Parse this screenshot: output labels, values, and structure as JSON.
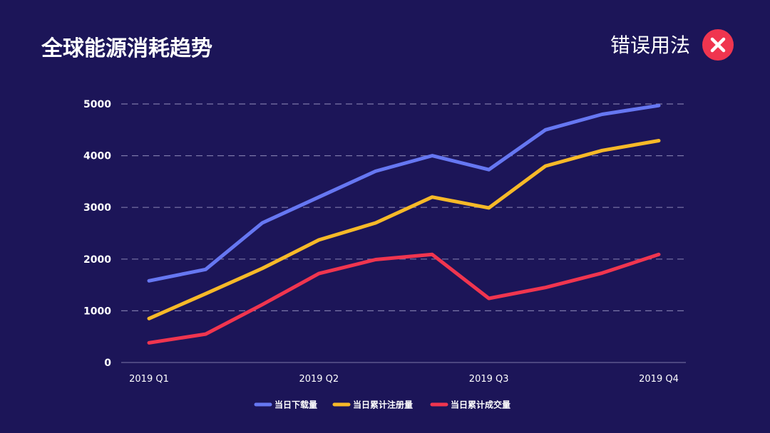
{
  "header": {
    "title": "全球能源消耗趋势",
    "usage_tag": "错误用法",
    "badge_icon": "close-icon"
  },
  "colors": {
    "background": "#1c1558",
    "series_blue": "#6677f2",
    "series_yellow": "#f7b928",
    "series_red": "#f0354f",
    "grid": "#7b77a8",
    "badge": "#f0354f"
  },
  "chart_data": {
    "type": "line",
    "title": "全球能源消耗趋势",
    "xlabel": "",
    "ylabel": "",
    "ylim": [
      0,
      5000
    ],
    "yticks": [
      0,
      1000,
      2000,
      3000,
      4000,
      5000
    ],
    "x_tick_labels": [
      "2019 Q1",
      "2019 Q2",
      "2019 Q3",
      "2019 Q4"
    ],
    "x_tick_positions": [
      0,
      3,
      6,
      9
    ],
    "point_count": 10,
    "grid": true,
    "grid_style": "dashed",
    "legend_position": "bottom",
    "series": [
      {
        "name": "当日下载量",
        "color": "#6677f2",
        "values": [
          1580,
          1800,
          2700,
          3200,
          3700,
          4000,
          3730,
          4500,
          4800,
          4970
        ]
      },
      {
        "name": "当日累计注册量",
        "color": "#f7b928",
        "values": [
          850,
          1330,
          1820,
          2370,
          2700,
          3200,
          2990,
          3800,
          4100,
          4290
        ]
      },
      {
        "name": "当日累计成交量",
        "color": "#f0354f",
        "values": [
          380,
          550,
          1120,
          1720,
          1990,
          2090,
          1240,
          1450,
          1730,
          2090
        ]
      }
    ]
  }
}
